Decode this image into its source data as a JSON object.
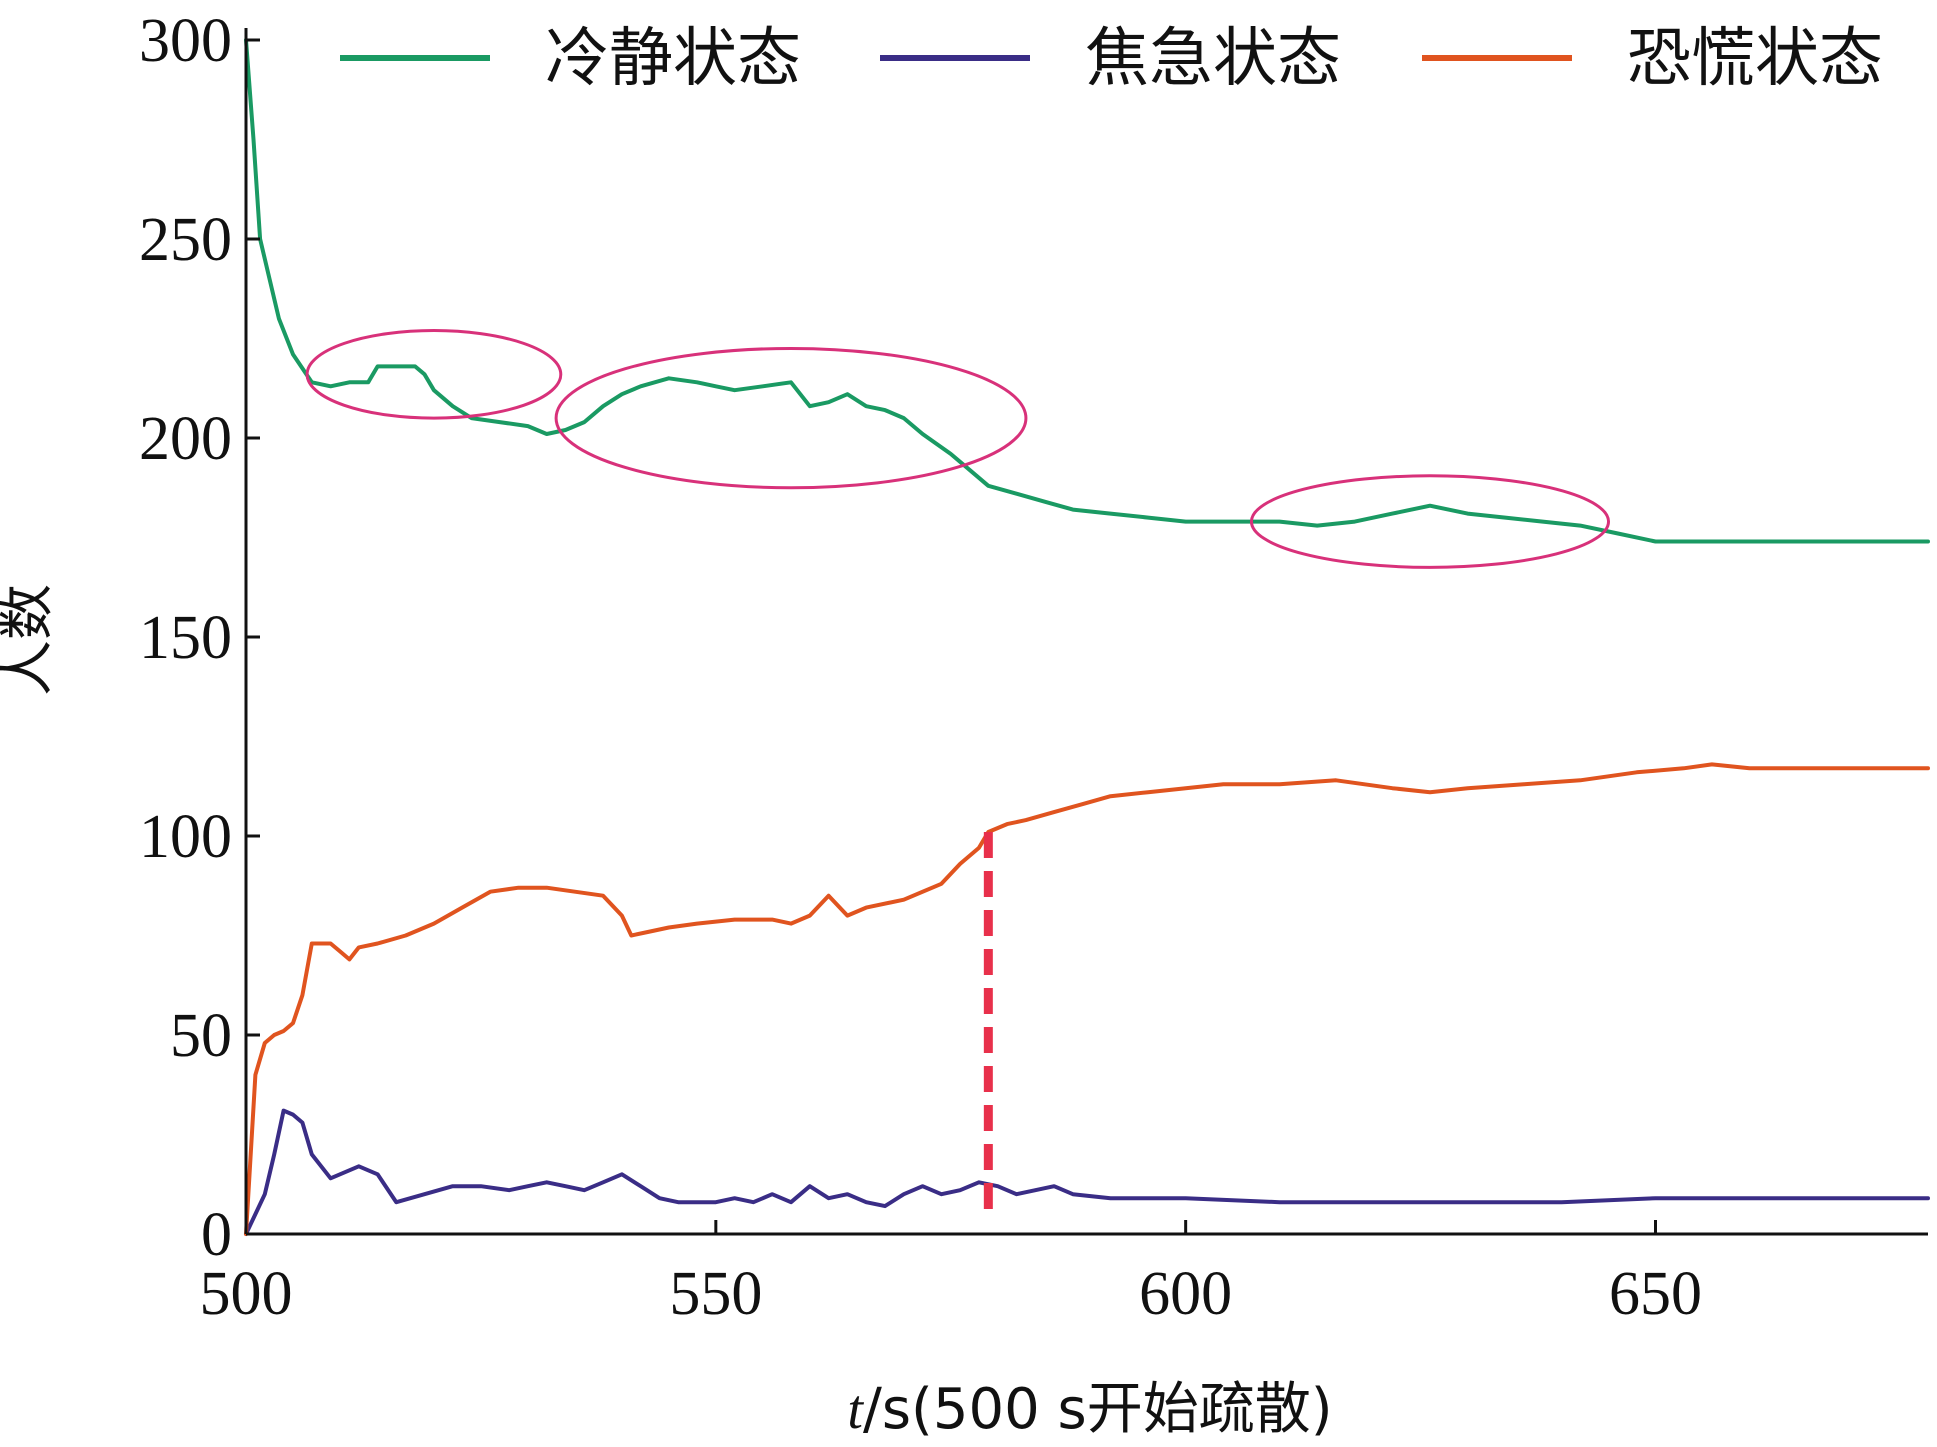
{
  "chart_data": {
    "type": "line",
    "title": "",
    "xlabel": {
      "var": "t",
      "rest": "/s(500 s开始疏散)"
    },
    "ylabel": "人数",
    "xlim": [
      500,
      679
    ],
    "ylim": [
      0,
      300
    ],
    "x_ticks": [
      500,
      550,
      600,
      650
    ],
    "y_ticks": [
      0,
      50,
      100,
      150,
      200,
      250,
      300
    ],
    "grid": false,
    "legend_position": "top",
    "series": [
      {
        "name": "冷静状态",
        "color": "#1a9a63",
        "x": [
          500,
          500.8,
          501.5,
          502.5,
          503.5,
          505,
          507,
          509,
          511,
          513,
          514,
          516,
          518,
          519,
          520,
          522,
          524,
          527,
          530,
          532,
          534,
          536,
          538,
          540,
          542,
          545,
          548,
          550,
          552,
          555,
          558,
          560,
          562,
          564,
          566,
          568,
          570,
          572,
          575,
          577,
          579,
          582,
          585,
          588,
          592,
          596,
          600,
          605,
          610,
          614,
          618,
          622,
          626,
          630,
          634,
          638,
          642,
          646,
          650,
          655,
          660,
          670,
          679
        ],
        "y": [
          300,
          275,
          250,
          240,
          230,
          221,
          214,
          213,
          214,
          214,
          218,
          218,
          218,
          216,
          212,
          208,
          205,
          204,
          203,
          201,
          202,
          204,
          208,
          211,
          213,
          215,
          214,
          213,
          212,
          213,
          214,
          208,
          209,
          211,
          208,
          207,
          205,
          201,
          196,
          192,
          188,
          186,
          184,
          182,
          181,
          180,
          179,
          179,
          179,
          178,
          179,
          181,
          183,
          181,
          180,
          179,
          178,
          176,
          174,
          174,
          174,
          174,
          174
        ]
      },
      {
        "name": "焦急状态",
        "color": "#3a2d86",
        "x": [
          500,
          501,
          502,
          503,
          504,
          505,
          506,
          507,
          509,
          510,
          512,
          514,
          516,
          519,
          522,
          525,
          528,
          530,
          532,
          534,
          536,
          538,
          540,
          542,
          544,
          546,
          548,
          550,
          552,
          554,
          556,
          558,
          560,
          562,
          564,
          566,
          568,
          570,
          572,
          574,
          576,
          578,
          580,
          582,
          584,
          586,
          588,
          592,
          600,
          610,
          620,
          630,
          640,
          650,
          660,
          679
        ],
        "y": [
          0,
          5,
          10,
          20,
          31,
          30,
          28,
          20,
          14,
          15,
          17,
          15,
          8,
          10,
          12,
          12,
          11,
          12,
          13,
          12,
          11,
          13,
          15,
          12,
          9,
          8,
          8,
          8,
          9,
          8,
          10,
          8,
          12,
          9,
          10,
          8,
          7,
          10,
          12,
          10,
          11,
          13,
          12,
          10,
          11,
          12,
          10,
          9,
          9,
          8,
          8,
          8,
          8,
          9,
          9,
          9
        ]
      },
      {
        "name": "恐慌状态",
        "color": "#e0541f",
        "x": [
          500,
          500.5,
          501,
          502,
          503,
          504,
          505,
          506,
          507,
          509,
          510,
          511,
          512,
          514,
          517,
          520,
          523,
          526,
          529,
          532,
          535,
          538,
          540,
          541,
          543,
          545,
          548,
          552,
          556,
          558,
          560,
          562,
          564,
          566,
          570,
          574,
          576,
          578,
          579,
          581,
          583,
          586,
          589,
          592,
          596,
          600,
          604,
          610,
          616,
          622,
          626,
          630,
          636,
          642,
          648,
          653,
          656,
          660,
          670,
          679
        ],
        "y": [
          0,
          20,
          40,
          48,
          50,
          51,
          53,
          60,
          73,
          73,
          71,
          69,
          72,
          73,
          75,
          78,
          82,
          86,
          87,
          87,
          86,
          85,
          80,
          75,
          76,
          77,
          78,
          79,
          79,
          78,
          80,
          85,
          80,
          82,
          84,
          88,
          93,
          97,
          101,
          103,
          104,
          106,
          108,
          110,
          111,
          112,
          113,
          113,
          114,
          112,
          111,
          112,
          113,
          114,
          116,
          117,
          118,
          117,
          117,
          117
        ]
      }
    ],
    "annotations": [
      {
        "type": "dashed-vline",
        "x": 579,
        "y_from": 5,
        "y_to": 101,
        "color": "#e8304b"
      },
      {
        "type": "ellipse",
        "cx": 520,
        "cy": 216,
        "rx": 13.5,
        "ry": 11,
        "color": "#d8317a"
      },
      {
        "type": "ellipse",
        "cx": 558,
        "cy": 205,
        "rx": 25,
        "ry": 17.5,
        "color": "#d8317a"
      },
      {
        "type": "ellipse",
        "cx": 626,
        "cy": 179,
        "rx": 19,
        "ry": 11.5,
        "color": "#d8317a"
      }
    ]
  }
}
